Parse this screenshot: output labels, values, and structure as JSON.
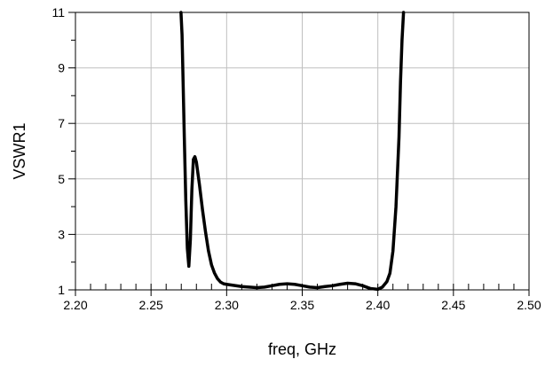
{
  "chart_data": {
    "type": "line",
    "title": "",
    "xlabel": "freq, GHz",
    "ylabel": "VSWR1",
    "xlim": [
      2.2,
      2.5
    ],
    "ylim": [
      1,
      11
    ],
    "x_ticks": [
      "2.20",
      "2.25",
      "2.30",
      "2.35",
      "2.40",
      "2.45",
      "2.50"
    ],
    "y_ticks": [
      "1",
      "3",
      "5",
      "7",
      "9",
      "11"
    ],
    "grid": true,
    "colors": {
      "line": "#000000",
      "grid": "#c0c0c0",
      "axis": "#000000"
    },
    "series": [
      {
        "name": "",
        "x": [
          2.2698,
          2.2705,
          2.2712,
          2.272,
          2.273,
          2.274,
          2.275,
          2.276,
          2.277,
          2.278,
          2.279,
          2.28,
          2.282,
          2.284,
          2.286,
          2.288,
          2.29,
          2.292,
          2.294,
          2.296,
          2.298,
          2.3,
          2.305,
          2.31,
          2.315,
          2.32,
          2.325,
          2.33,
          2.335,
          2.34,
          2.345,
          2.35,
          2.355,
          2.36,
          2.365,
          2.37,
          2.375,
          2.38,
          2.385,
          2.39,
          2.395,
          2.4,
          2.403,
          2.406,
          2.408,
          2.41,
          2.412,
          2.414,
          2.415,
          2.416,
          2.417
        ],
        "y": [
          11.0,
          10.2,
          8.5,
          6.5,
          4.2,
          2.5,
          1.85,
          2.8,
          4.6,
          5.7,
          5.8,
          5.6,
          4.8,
          3.9,
          3.1,
          2.4,
          1.9,
          1.6,
          1.4,
          1.28,
          1.22,
          1.2,
          1.16,
          1.12,
          1.1,
          1.08,
          1.1,
          1.15,
          1.2,
          1.22,
          1.2,
          1.15,
          1.1,
          1.08,
          1.12,
          1.15,
          1.2,
          1.24,
          1.22,
          1.15,
          1.05,
          1.02,
          1.1,
          1.3,
          1.6,
          2.4,
          4.0,
          6.5,
          8.5,
          10.0,
          11.0
        ]
      }
    ]
  }
}
